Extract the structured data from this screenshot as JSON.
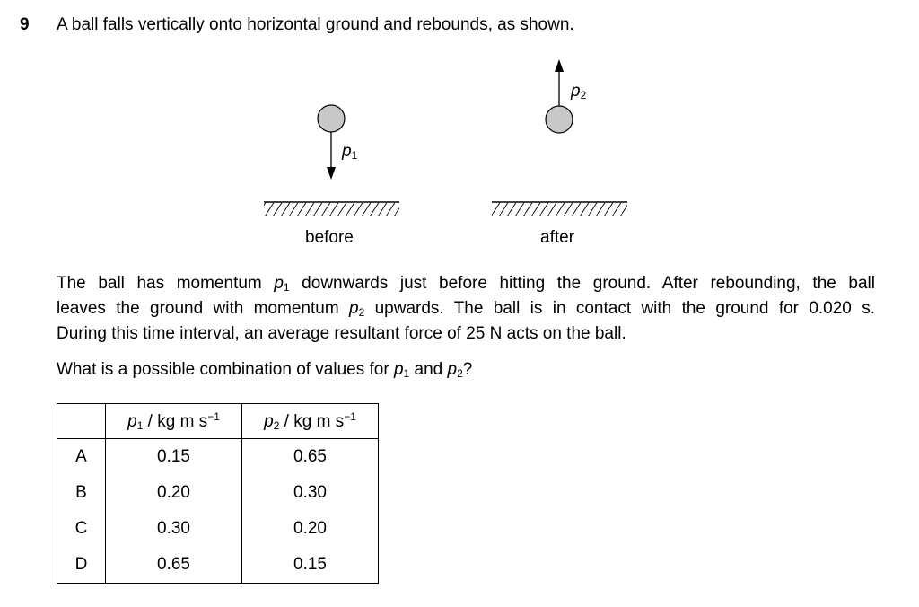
{
  "question": {
    "number": "9",
    "stem": "A ball falls vertically onto horizontal ground and rebounds, as shown."
  },
  "diagram": {
    "label_p1": "p",
    "label_p1_sub": "1",
    "label_p2": "p",
    "label_p2_sub": "2",
    "before": "before",
    "after": "after"
  },
  "paragraph": {
    "line1_a": "The ball has momentum ",
    "line1_b": " downwards just before hitting the ground. After rebounding, the ball",
    "line2_a": "leaves the ground with momentum ",
    "line2_b": " upwards. The ball is in contact with the ground for 0.020 s.",
    "line3": "During this time interval, an average resultant force of 25 N acts on the ball."
  },
  "prompt": {
    "a": "What is a possible combination of values for ",
    "b": " and ",
    "c": "?"
  },
  "table": {
    "header_unit": " / kg m s",
    "header_exp": "−1",
    "rows": [
      {
        "letter": "A",
        "p1": "0.15",
        "p2": "0.65"
      },
      {
        "letter": "B",
        "p1": "0.20",
        "p2": "0.30"
      },
      {
        "letter": "C",
        "p1": "0.30",
        "p2": "0.20"
      },
      {
        "letter": "D",
        "p1": "0.65",
        "p2": "0.15"
      }
    ]
  },
  "colors": {
    "ball_fill": "#c8c8c8",
    "ink": "#000000"
  }
}
